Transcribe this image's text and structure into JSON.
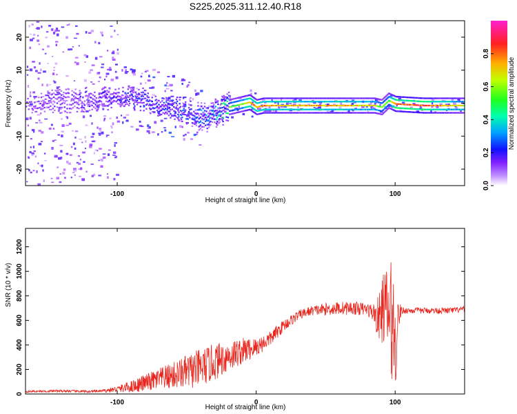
{
  "figure": {
    "title": "S225.2025.311.12.40.R18"
  },
  "colors": {
    "snr_line": "#e8261e",
    "background": "#ffffff",
    "axis": "#000000"
  },
  "chart_data": [
    {
      "type": "heatmap",
      "title": "S225.2025.311.12.40.R18",
      "xlabel": "Height of straight line (km)",
      "ylabel": "Frequency (Hz)",
      "xlim": [
        -166,
        150
      ],
      "ylim": [
        -25,
        25
      ],
      "x_ticks": [
        -100,
        0,
        100
      ],
      "y_ticks": [
        -20,
        -10,
        0,
        10,
        20
      ],
      "colorbar": {
        "label": "Normalized spectral amplitude",
        "range": [
          0,
          1
        ],
        "ticks": [
          "0.0",
          "0.2",
          "0.4",
          "0.6",
          "0.8"
        ],
        "colormap": [
          "#ffffff",
          "#a040ff",
          "#3010ff",
          "#00c0ff",
          "#00ff60",
          "#c0ff00",
          "#ffb000",
          "#ff2020",
          "#ff30c0"
        ]
      },
      "ridge": {
        "description_points_x": [
          -166,
          -100,
          -80,
          -60,
          -45,
          -35,
          -20,
          -10,
          -5,
          0,
          5,
          20,
          60,
          85,
          90,
          95,
          100,
          120,
          150
        ],
        "frequency_y": [
          0,
          2,
          1,
          -1,
          -3,
          -4,
          -1,
          0,
          0.5,
          -1,
          -0.5,
          -0.5,
          -0.5,
          -0.5,
          -1,
          1,
          0,
          -0.5,
          -0.5
        ],
        "amplitude": [
          0.15,
          0.25,
          0.3,
          0.3,
          0.35,
          0.4,
          0.55,
          0.7,
          0.9,
          0.8,
          0.85,
          0.8,
          0.8,
          0.75,
          0.6,
          0.6,
          0.95,
          0.95,
          0.7
        ]
      }
    },
    {
      "type": "line",
      "xlabel": "Height of straight line (km)",
      "ylabel": "SNR (10 * v/v)",
      "xlim": [
        -166,
        150
      ],
      "ylim": [
        0,
        1350
      ],
      "x_ticks": [
        -100,
        0,
        100
      ],
      "y_ticks": [
        0,
        200,
        400,
        600,
        800,
        1000,
        1200
      ],
      "series": [
        {
          "x": [
            -166,
            -140,
            -120,
            -110,
            -100,
            -90,
            -80,
            -70,
            -60,
            -50,
            -40,
            -30,
            -20,
            -10,
            0,
            10,
            20,
            30,
            40,
            50,
            60,
            70,
            80,
            85,
            88,
            92,
            95,
            98,
            100,
            102,
            105,
            110,
            120,
            130,
            140,
            150
          ],
          "y_mean": [
            20,
            25,
            20,
            25,
            40,
            60,
            90,
            120,
            150,
            180,
            210,
            260,
            310,
            350,
            380,
            450,
            560,
            640,
            680,
            690,
            700,
            700,
            690,
            660,
            600,
            720,
            650,
            600,
            380,
            640,
            680,
            680,
            680,
            680,
            680,
            690
          ],
          "y_noise_amplitude": [
            8,
            10,
            10,
            12,
            25,
            50,
            70,
            90,
            110,
            140,
            160,
            150,
            130,
            110,
            80,
            60,
            50,
            40,
            40,
            50,
            55,
            55,
            50,
            80,
            200,
            300,
            400,
            500,
            500,
            120,
            30,
            25,
            25,
            25,
            25,
            25
          ]
        }
      ]
    }
  ]
}
